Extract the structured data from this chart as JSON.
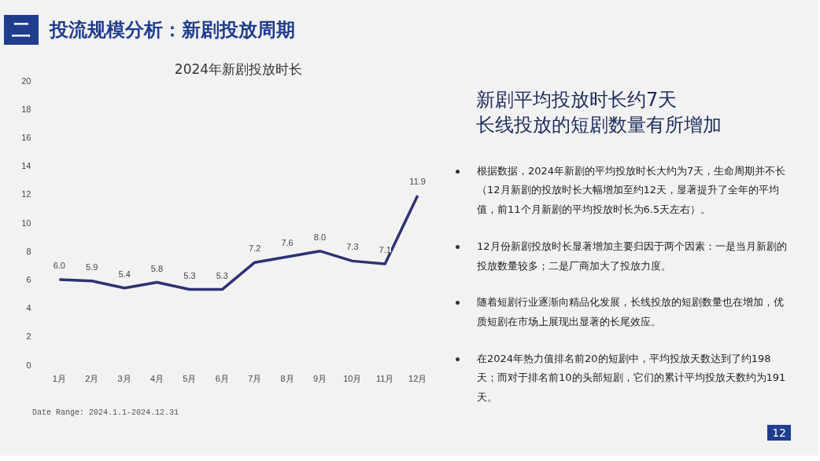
{
  "chart_data": {
    "type": "line",
    "title": "2024年新剧投放时长",
    "categories": [
      "1月",
      "2月",
      "3月",
      "4月",
      "5月",
      "6月",
      "7月",
      "8月",
      "9月",
      "10月",
      "11月",
      "12月"
    ],
    "series": [
      {
        "color": "#2e3272",
        "values": [
          6.0,
          5.9,
          5.4,
          5.8,
          5.3,
          5.3,
          7.2,
          7.6,
          8.0,
          7.3,
          7.1,
          11.9
        ]
      }
    ],
    "value_labels": [
      "6.0",
      "5.9",
      "5.4",
      "5.8",
      "5.3",
      "5.3",
      "7.2",
      "7.6",
      "8.0",
      "7.3",
      "7.1",
      "11.9"
    ],
    "ylim": [
      0,
      20
    ],
    "yticks": [
      0,
      2,
      4,
      6,
      8,
      10,
      12,
      14,
      16,
      18,
      20
    ],
    "grid": false,
    "annotations": [
      "二",
      "投流规模分析：新剧投放周期",
      "新剧平均投放时长约7天",
      "长线投放的短剧数量有所增加",
      "根据数据，2024年新剧的平均投放时长大约为7天，生命周期并不长（12月新剧的投放时长大幅增加至约12天，显著提升了全年的平均值，前11个月新剧的平均投放时长为6.5天左右）。",
      "12月份新剧投放时长显著增加主要归因于两个因素：一是当月新剧的投放数量较多；二是厂商加大了投放力度。",
      "随着短剧行业逐渐向精品化发展，长线投放的短剧数量也在增加，优质短剧在市场上展现出显著的长尾效应。",
      "在2024年热力值排名前20的短剧中，平均投放天数达到了约198天；而对于排名前10的头部短剧，它们的累计平均投放天数约为191天。",
      "Date Range: 2024.1.1-2024.12.31",
      "12"
    ]
  }
}
